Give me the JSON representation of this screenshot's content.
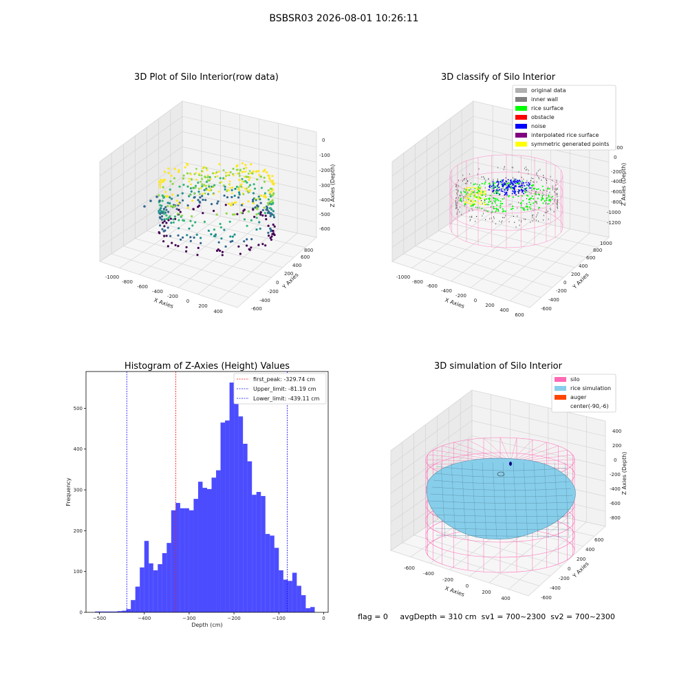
{
  "suptitle": "BSBSR03 2026-08-01 10:26:11",
  "footer": "flag = 0     avgDepth = 310 cm  sv1 = 700~2300  sv2 = 700~2300",
  "chart_data": [
    {
      "type": "scatter",
      "title": "3D Plot of Silo Interior(row data)",
      "xlabel": "X Axies",
      "ylabel": "Y Axies",
      "zlabel": "Z Axies (Depth)",
      "x_ticks": [
        "-1000",
        "-800",
        "-600",
        "-400",
        "-200",
        "0",
        "200",
        "400"
      ],
      "y_ticks": [
        "-600",
        "-400",
        "-200",
        "0",
        "200",
        "400",
        "600",
        "800"
      ],
      "z_ticks": [
        "0",
        "-100",
        "-200",
        "-300",
        "-400",
        "-500",
        "-600"
      ],
      "colormap": [
        "#440154",
        "#31688e",
        "#21918c",
        "#35b779",
        "#90d743",
        "#fde725"
      ],
      "grid": true
    },
    {
      "type": "scatter",
      "title": "3D classify of Silo Interior",
      "xlabel": "X Axies",
      "ylabel": "Y Axies",
      "zlabel": "Z Axies (Depth)",
      "x_ticks": [
        "-1000",
        "-800",
        "-600",
        "-400",
        "-200",
        "0",
        "200",
        "400",
        "600"
      ],
      "y_ticks": [
        "-600",
        "-400",
        "-200",
        "0",
        "200",
        "400",
        "600",
        "800",
        "1000"
      ],
      "z_ticks": [
        "200",
        "0",
        "-200",
        "-400",
        "-600",
        "-800",
        "-1000",
        "-1200"
      ],
      "legend": [
        {
          "label": "original data",
          "color": "#b0b0b0"
        },
        {
          "label": "inner wall",
          "color": "#808080"
        },
        {
          "label": "rice surface",
          "color": "#00ff00"
        },
        {
          "label": "obstacle",
          "color": "#ff0000"
        },
        {
          "label": "noise",
          "color": "#0000ff"
        },
        {
          "label": "interpolated rice surface",
          "color": "#800080"
        },
        {
          "label": "symmetric generated points",
          "color": "#ffff00"
        }
      ],
      "grid": true
    },
    {
      "type": "bar",
      "title": "Histogram of Z-Axies (Height) Values",
      "xlabel": "Depth (cm)",
      "ylabel": "Frequency",
      "xlim": [
        -530,
        10
      ],
      "ylim": [
        0,
        590
      ],
      "x_ticks": [
        -500,
        -400,
        -300,
        -200,
        -100,
        0
      ],
      "y_ticks": [
        0,
        100,
        200,
        300,
        400,
        500
      ],
      "bin_start": -510,
      "bin_width": 10,
      "values": [
        2,
        2,
        2,
        2,
        2,
        3,
        4,
        8,
        30,
        63,
        110,
        175,
        120,
        103,
        118,
        145,
        170,
        250,
        268,
        255,
        255,
        250,
        278,
        320,
        305,
        302,
        330,
        348,
        465,
        470,
        563,
        545,
        480,
        413,
        370,
        288,
        295,
        285,
        192,
        188,
        158,
        103,
        80,
        77,
        97,
        65,
        42,
        10,
        13
      ],
      "bar_color": "#0000ff",
      "lines": [
        {
          "label": "first_peak: -329.74 cm",
          "x": -329.74,
          "color": "#ff0000"
        },
        {
          "label": "Upper_limit: -81.19 cm",
          "x": -81.19,
          "color": "#0000ff"
        },
        {
          "label": "Lower_limit: -439.11 cm",
          "x": -439.11,
          "color": "#0000ff"
        }
      ],
      "legend_position": "top-right",
      "grid": false
    },
    {
      "type": "surface",
      "title": "3D simulation of Silo Interior",
      "xlabel": "X Axies",
      "ylabel": "Y Axies",
      "zlabel": "Z Axies (Depth)",
      "x_ticks": [
        "-600",
        "-400",
        "-200",
        "0",
        "200",
        "400"
      ],
      "y_ticks": [
        "-600",
        "-400",
        "-200",
        "0",
        "200",
        "400",
        "600"
      ],
      "z_ticks": [
        "400",
        "200",
        "0",
        "-200",
        "-400",
        "-600",
        "-800"
      ],
      "legend": [
        {
          "label": "silo",
          "color": "#ff69b4"
        },
        {
          "label": "rice simulation",
          "color": "#87ceeb"
        },
        {
          "label": "auger",
          "color": "#ff4500"
        },
        {
          "label": "center(-90,-6)",
          "color": ""
        }
      ],
      "grid": true
    }
  ]
}
